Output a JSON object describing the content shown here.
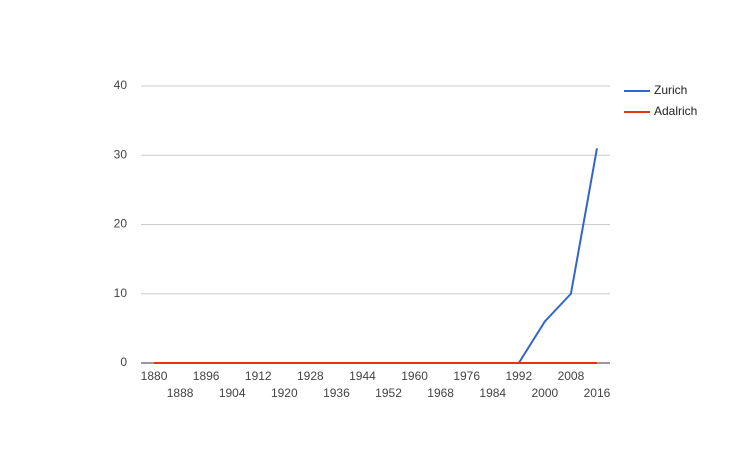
{
  "chart_data": {
    "type": "line",
    "x": [
      1880,
      1888,
      1896,
      1904,
      1912,
      1920,
      1928,
      1936,
      1944,
      1952,
      1960,
      1968,
      1976,
      1984,
      1992,
      2000,
      2008,
      2016
    ],
    "series": [
      {
        "name": "Zurich",
        "color": "#3366cc",
        "values": [
          0,
          0,
          0,
          0,
          0,
          0,
          0,
          0,
          0,
          0,
          0,
          0,
          0,
          0,
          0,
          6,
          10,
          31
        ]
      },
      {
        "name": "Adalrich",
        "color": "#dc3912",
        "values": [
          0,
          0,
          0,
          0,
          0,
          0,
          0,
          0,
          0,
          0,
          0,
          0,
          0,
          0,
          0,
          0,
          0,
          0
        ]
      }
    ],
    "xlim": [
      1876,
      2020
    ],
    "xticks": [
      1880,
      1888,
      1896,
      1904,
      1912,
      1920,
      1928,
      1936,
      1944,
      1952,
      1960,
      1968,
      1976,
      1984,
      1992,
      2000,
      2008,
      2016
    ],
    "ylim": [
      0,
      40
    ],
    "yticks": [
      0,
      10,
      20,
      30,
      40
    ],
    "grid": true,
    "legend": "right"
  }
}
